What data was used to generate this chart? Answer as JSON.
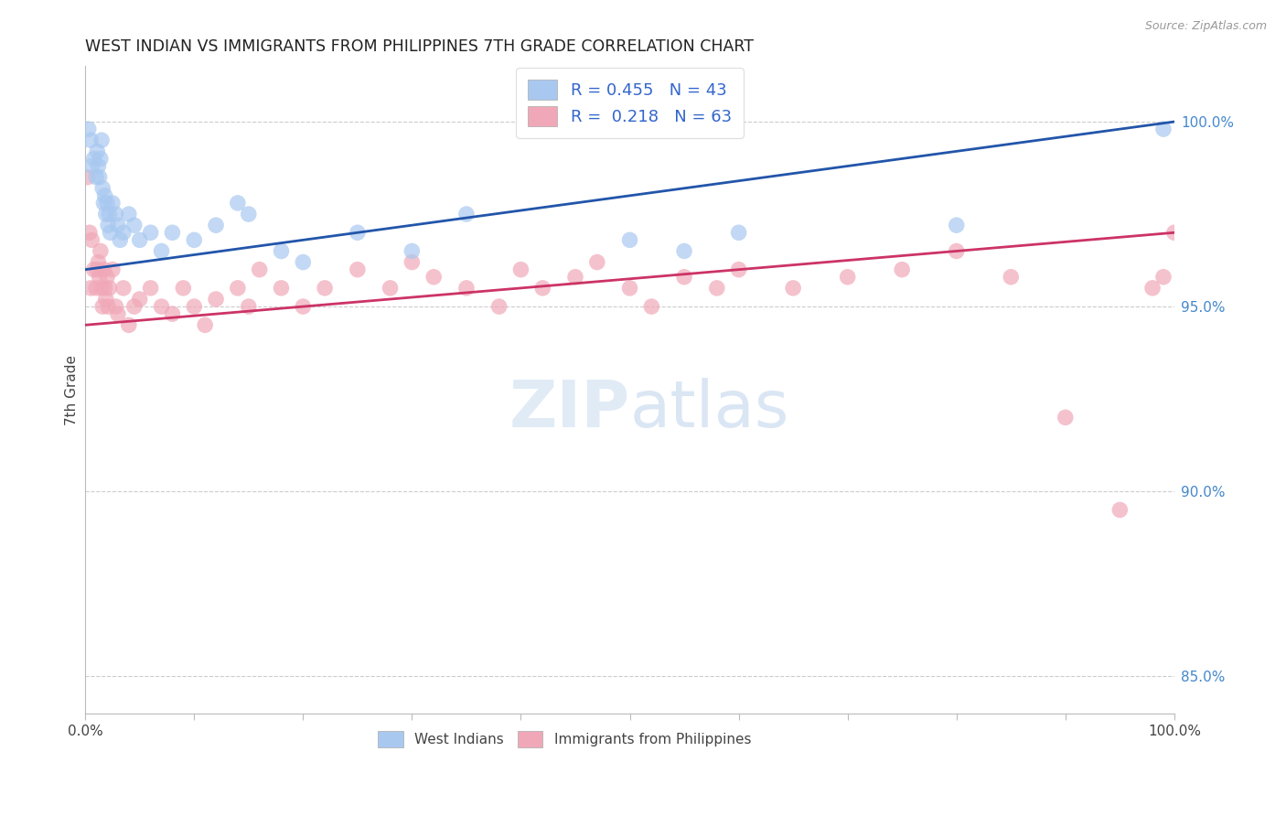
{
  "title": "WEST INDIAN VS IMMIGRANTS FROM PHILIPPINES 7TH GRADE CORRELATION CHART",
  "source": "Source: ZipAtlas.com",
  "ylabel": "7th Grade",
  "y_ticks": [
    85.0,
    90.0,
    95.0,
    100.0
  ],
  "y_tick_labels": [
    "85.0%",
    "90.0%",
    "95.0%",
    "100.0%"
  ],
  "legend_label1": "West Indians",
  "legend_label2": "Immigrants from Philippines",
  "R1": 0.455,
  "N1": 43,
  "R2": 0.218,
  "N2": 63,
  "color_blue": "#A8C8F0",
  "color_pink": "#F0A8B8",
  "line_color_blue": "#2255AA",
  "line_color_pink": "#CC3366",
  "blue_x": [
    0.3,
    0.5,
    0.6,
    0.8,
    1.0,
    1.1,
    1.2,
    1.3,
    1.4,
    1.5,
    1.6,
    1.7,
    1.8,
    1.9,
    2.0,
    2.1,
    2.2,
    2.3,
    2.5,
    2.8,
    3.0,
    3.2,
    3.5,
    4.0,
    4.5,
    5.0,
    6.0,
    7.0,
    8.0,
    10.0,
    12.0,
    14.0,
    15.0,
    18.0,
    20.0,
    25.0,
    30.0,
    35.0,
    50.0,
    55.0,
    60.0,
    80.0,
    99.0
  ],
  "blue_y": [
    99.8,
    99.5,
    98.8,
    99.0,
    98.5,
    99.2,
    98.8,
    98.5,
    99.0,
    99.5,
    98.2,
    97.8,
    98.0,
    97.5,
    97.8,
    97.2,
    97.5,
    97.0,
    97.8,
    97.5,
    97.2,
    96.8,
    97.0,
    97.5,
    97.2,
    96.8,
    97.0,
    96.5,
    97.0,
    96.8,
    97.2,
    97.8,
    97.5,
    96.5,
    96.2,
    97.0,
    96.5,
    97.5,
    96.8,
    96.5,
    97.0,
    97.2,
    99.8
  ],
  "pink_x": [
    0.2,
    0.4,
    0.5,
    0.6,
    0.8,
    1.0,
    1.1,
    1.2,
    1.3,
    1.4,
    1.5,
    1.6,
    1.7,
    1.8,
    1.9,
    2.0,
    2.1,
    2.2,
    2.5,
    2.8,
    3.0,
    3.5,
    4.0,
    4.5,
    5.0,
    6.0,
    7.0,
    8.0,
    9.0,
    10.0,
    11.0,
    12.0,
    14.0,
    15.0,
    16.0,
    18.0,
    20.0,
    22.0,
    25.0,
    28.0,
    30.0,
    32.0,
    35.0,
    38.0,
    40.0,
    42.0,
    45.0,
    47.0,
    50.0,
    52.0,
    55.0,
    58.0,
    60.0,
    65.0,
    70.0,
    75.0,
    80.0,
    85.0,
    90.0,
    95.0,
    98.0,
    99.0,
    100.0
  ],
  "pink_y": [
    98.5,
    97.0,
    95.5,
    96.8,
    96.0,
    95.5,
    96.0,
    96.2,
    95.8,
    96.5,
    95.5,
    95.0,
    96.0,
    95.5,
    95.2,
    95.8,
    95.0,
    95.5,
    96.0,
    95.0,
    94.8,
    95.5,
    94.5,
    95.0,
    95.2,
    95.5,
    95.0,
    94.8,
    95.5,
    95.0,
    94.5,
    95.2,
    95.5,
    95.0,
    96.0,
    95.5,
    95.0,
    95.5,
    96.0,
    95.5,
    96.2,
    95.8,
    95.5,
    95.0,
    96.0,
    95.5,
    95.8,
    96.2,
    95.5,
    95.0,
    95.8,
    95.5,
    96.0,
    95.5,
    95.8,
    96.0,
    96.5,
    95.8,
    92.0,
    89.5,
    95.5,
    95.8,
    97.0
  ],
  "ylim_min": 84.0,
  "ylim_max": 101.5,
  "xlim_min": 0.0,
  "xlim_max": 100.0
}
